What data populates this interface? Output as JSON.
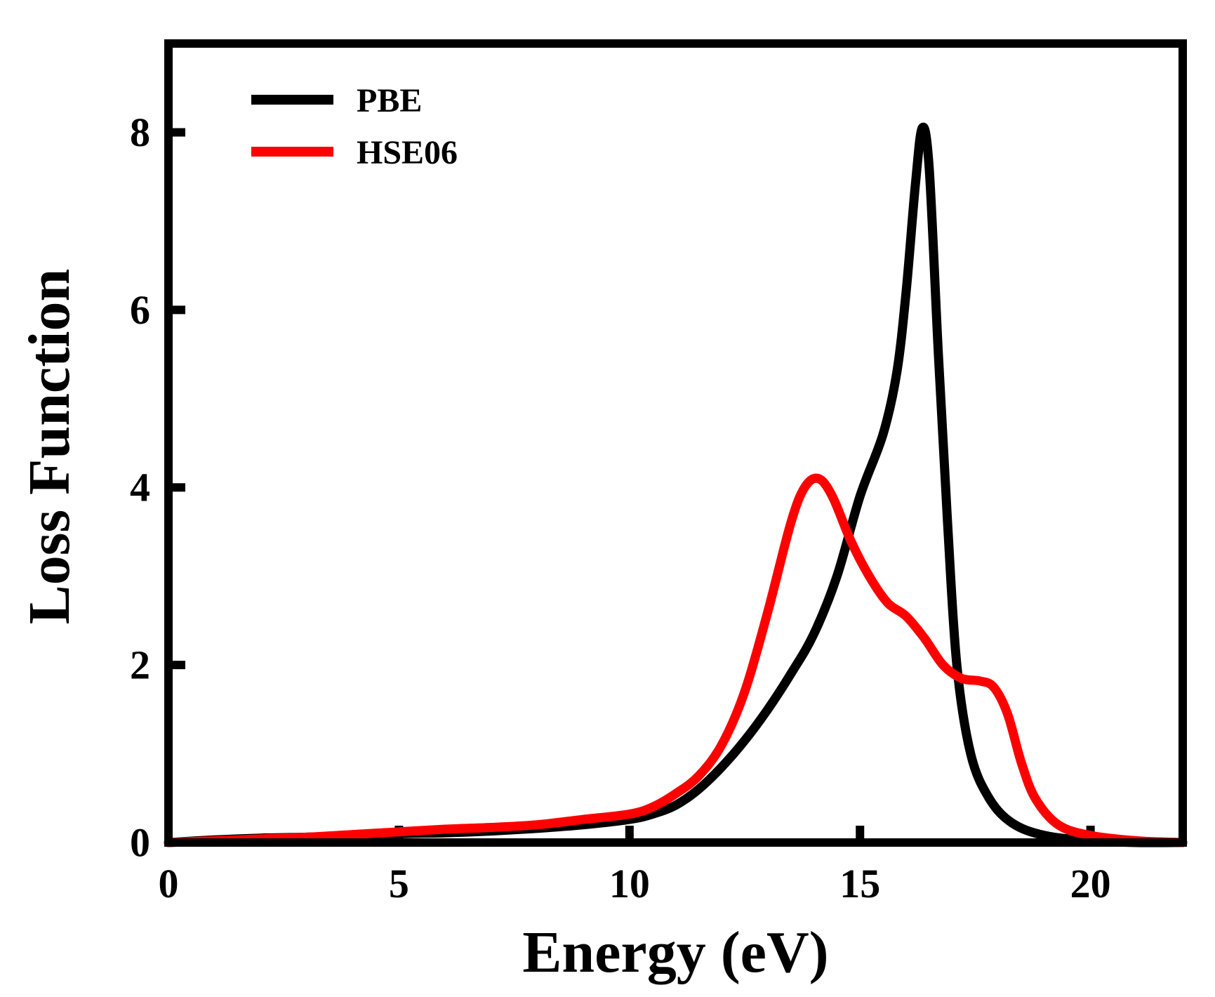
{
  "chart_data": {
    "type": "line",
    "title": "",
    "xlabel": "Energy (eV)",
    "ylabel": "Loss Function",
    "xlim": [
      0,
      22
    ],
    "ylim": [
      0,
      9
    ],
    "xticks": [
      0,
      5,
      10,
      15,
      20
    ],
    "yticks": [
      0,
      2,
      4,
      6,
      8
    ],
    "xtick_labels": [
      "0",
      "5",
      "10",
      "15",
      "20"
    ],
    "ytick_labels": [
      "0",
      "2",
      "4",
      "6",
      "8"
    ],
    "grid": false,
    "legend_position": "top-left",
    "series": [
      {
        "name": "PBE",
        "color": "#000000",
        "points": [
          [
            0,
            0.0
          ],
          [
            1,
            0.03
          ],
          [
            2,
            0.05
          ],
          [
            3,
            0.06
          ],
          [
            4,
            0.08
          ],
          [
            5,
            0.1
          ],
          [
            6,
            0.11
          ],
          [
            7,
            0.13
          ],
          [
            8,
            0.16
          ],
          [
            9,
            0.2
          ],
          [
            10,
            0.26
          ],
          [
            10.5,
            0.32
          ],
          [
            11,
            0.42
          ],
          [
            11.5,
            0.6
          ],
          [
            12,
            0.85
          ],
          [
            12.5,
            1.15
          ],
          [
            13,
            1.5
          ],
          [
            13.5,
            1.9
          ],
          [
            14,
            2.35
          ],
          [
            14.5,
            3.0
          ],
          [
            15,
            3.9
          ],
          [
            15.5,
            4.6
          ],
          [
            15.8,
            5.3
          ],
          [
            16.0,
            6.2
          ],
          [
            16.2,
            7.4
          ],
          [
            16.35,
            8.05
          ],
          [
            16.5,
            7.6
          ],
          [
            16.7,
            5.5
          ],
          [
            16.9,
            3.6
          ],
          [
            17.1,
            2.0
          ],
          [
            17.4,
            1.0
          ],
          [
            17.8,
            0.5
          ],
          [
            18.3,
            0.22
          ],
          [
            19,
            0.08
          ],
          [
            20,
            0.02
          ],
          [
            21,
            0.0
          ],
          [
            22,
            0.0
          ]
        ]
      },
      {
        "name": "HSE06",
        "color": "#ff0000",
        "points": [
          [
            0,
            0.0
          ],
          [
            1,
            0.02
          ],
          [
            2,
            0.04
          ],
          [
            3,
            0.06
          ],
          [
            4,
            0.09
          ],
          [
            5,
            0.12
          ],
          [
            6,
            0.15
          ],
          [
            7,
            0.17
          ],
          [
            8,
            0.2
          ],
          [
            9,
            0.26
          ],
          [
            10,
            0.32
          ],
          [
            10.5,
            0.4
          ],
          [
            11,
            0.55
          ],
          [
            11.5,
            0.75
          ],
          [
            12,
            1.1
          ],
          [
            12.5,
            1.7
          ],
          [
            13,
            2.6
          ],
          [
            13.5,
            3.6
          ],
          [
            13.8,
            4.0
          ],
          [
            14.1,
            4.1
          ],
          [
            14.4,
            3.9
          ],
          [
            14.8,
            3.4
          ],
          [
            15.2,
            3.0
          ],
          [
            15.6,
            2.7
          ],
          [
            16.0,
            2.55
          ],
          [
            16.4,
            2.3
          ],
          [
            16.8,
            2.0
          ],
          [
            17.2,
            1.85
          ],
          [
            17.6,
            1.82
          ],
          [
            17.9,
            1.75
          ],
          [
            18.2,
            1.45
          ],
          [
            18.5,
            0.9
          ],
          [
            18.8,
            0.5
          ],
          [
            19.3,
            0.2
          ],
          [
            20,
            0.08
          ],
          [
            21,
            0.02
          ],
          [
            22,
            0.0
          ]
        ]
      }
    ]
  }
}
